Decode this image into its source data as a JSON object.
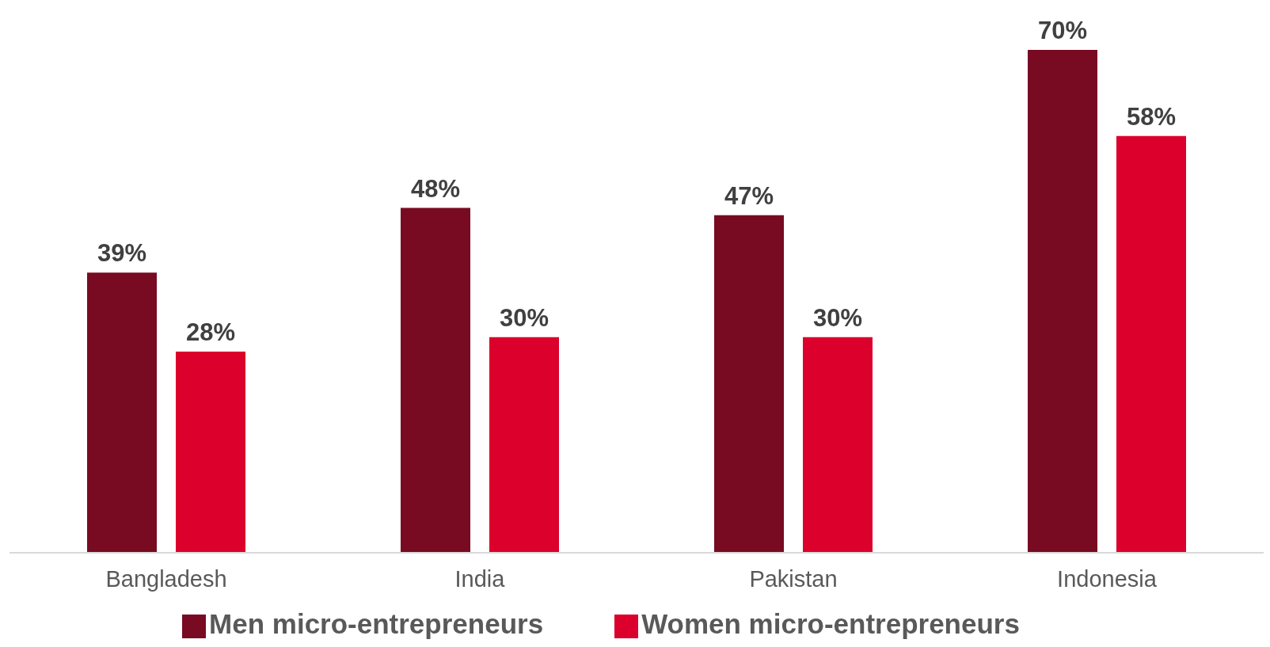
{
  "chart_data": {
    "type": "bar",
    "categories": [
      "Bangladesh",
      "India",
      "Pakistan",
      "Indonesia"
    ],
    "series": [
      {
        "name": "Men micro-entrepreneurs",
        "color": "#780a22",
        "values": [
          39,
          48,
          47,
          70
        ],
        "value_labels": [
          "39%",
          "48%",
          "47%",
          "70%"
        ]
      },
      {
        "name": "Women micro-entrepreneurs",
        "color": "#dc002c",
        "values": [
          28,
          30,
          30,
          58
        ],
        "value_labels": [
          "28%",
          "30%",
          "30%",
          "58%"
        ]
      }
    ],
    "legend": "bottom",
    "grid": false
  }
}
